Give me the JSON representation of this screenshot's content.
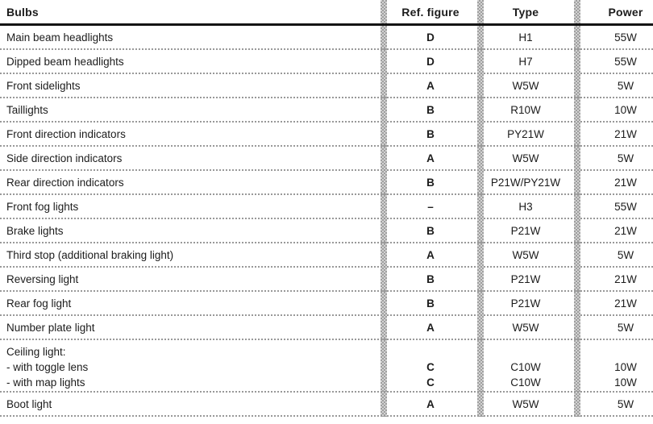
{
  "table": {
    "headers": {
      "bulbs": "Bulbs",
      "ref_figure": "Ref. figure",
      "type": "Type",
      "power": "Power"
    },
    "rows": [
      {
        "name": "Main beam headlights",
        "ref": "D",
        "type": "H1",
        "power": "55W"
      },
      {
        "name": "Dipped beam headlights",
        "ref": "D",
        "type": "H7",
        "power": "55W"
      },
      {
        "name": "Front sidelights",
        "ref": "A",
        "type": "W5W",
        "power": "5W"
      },
      {
        "name": "Taillights",
        "ref": "B",
        "type": "R10W",
        "power": "10W"
      },
      {
        "name": "Front direction indicators",
        "ref": "B",
        "type": "PY21W",
        "power": "21W"
      },
      {
        "name": "Side direction indicators",
        "ref": "A",
        "type": "W5W",
        "power": "5W"
      },
      {
        "name": "Rear direction indicators",
        "ref": "B",
        "type": "P21W/PY21W",
        "power": "21W"
      },
      {
        "name": "Front fog lights",
        "ref": "–",
        "type": "H3",
        "power": "55W"
      },
      {
        "name": "Brake lights",
        "ref": "B",
        "type": "P21W",
        "power": "21W"
      },
      {
        "name": "Third stop (additional braking light)",
        "ref": "A",
        "type": "W5W",
        "power": "5W"
      },
      {
        "name": "Reversing light",
        "ref": "B",
        "type": "P21W",
        "power": "21W"
      },
      {
        "name": "Rear fog light",
        "ref": "B",
        "type": "P21W",
        "power": "21W"
      },
      {
        "name": "Number plate light",
        "ref": "A",
        "type": "W5W",
        "power": "5W"
      },
      {
        "name_lines": [
          "Ceiling light:",
          "- with toggle lens",
          "- with map lights"
        ],
        "ref_lines": [
          "",
          "C",
          "C"
        ],
        "type_lines": [
          "",
          "C10W",
          "C10W"
        ],
        "power_lines": [
          "",
          "10W",
          "10W"
        ]
      },
      {
        "name": "Boot light",
        "ref": "A",
        "type": "W5W",
        "power": "5W"
      }
    ]
  },
  "colors": {
    "text": "#1c1c1c",
    "header_rule": "#141414",
    "row_separator": "#999999",
    "column_divider_dark": "#9f9f9f",
    "column_divider_light": "#d3d3d3",
    "background": "#ffffff"
  }
}
